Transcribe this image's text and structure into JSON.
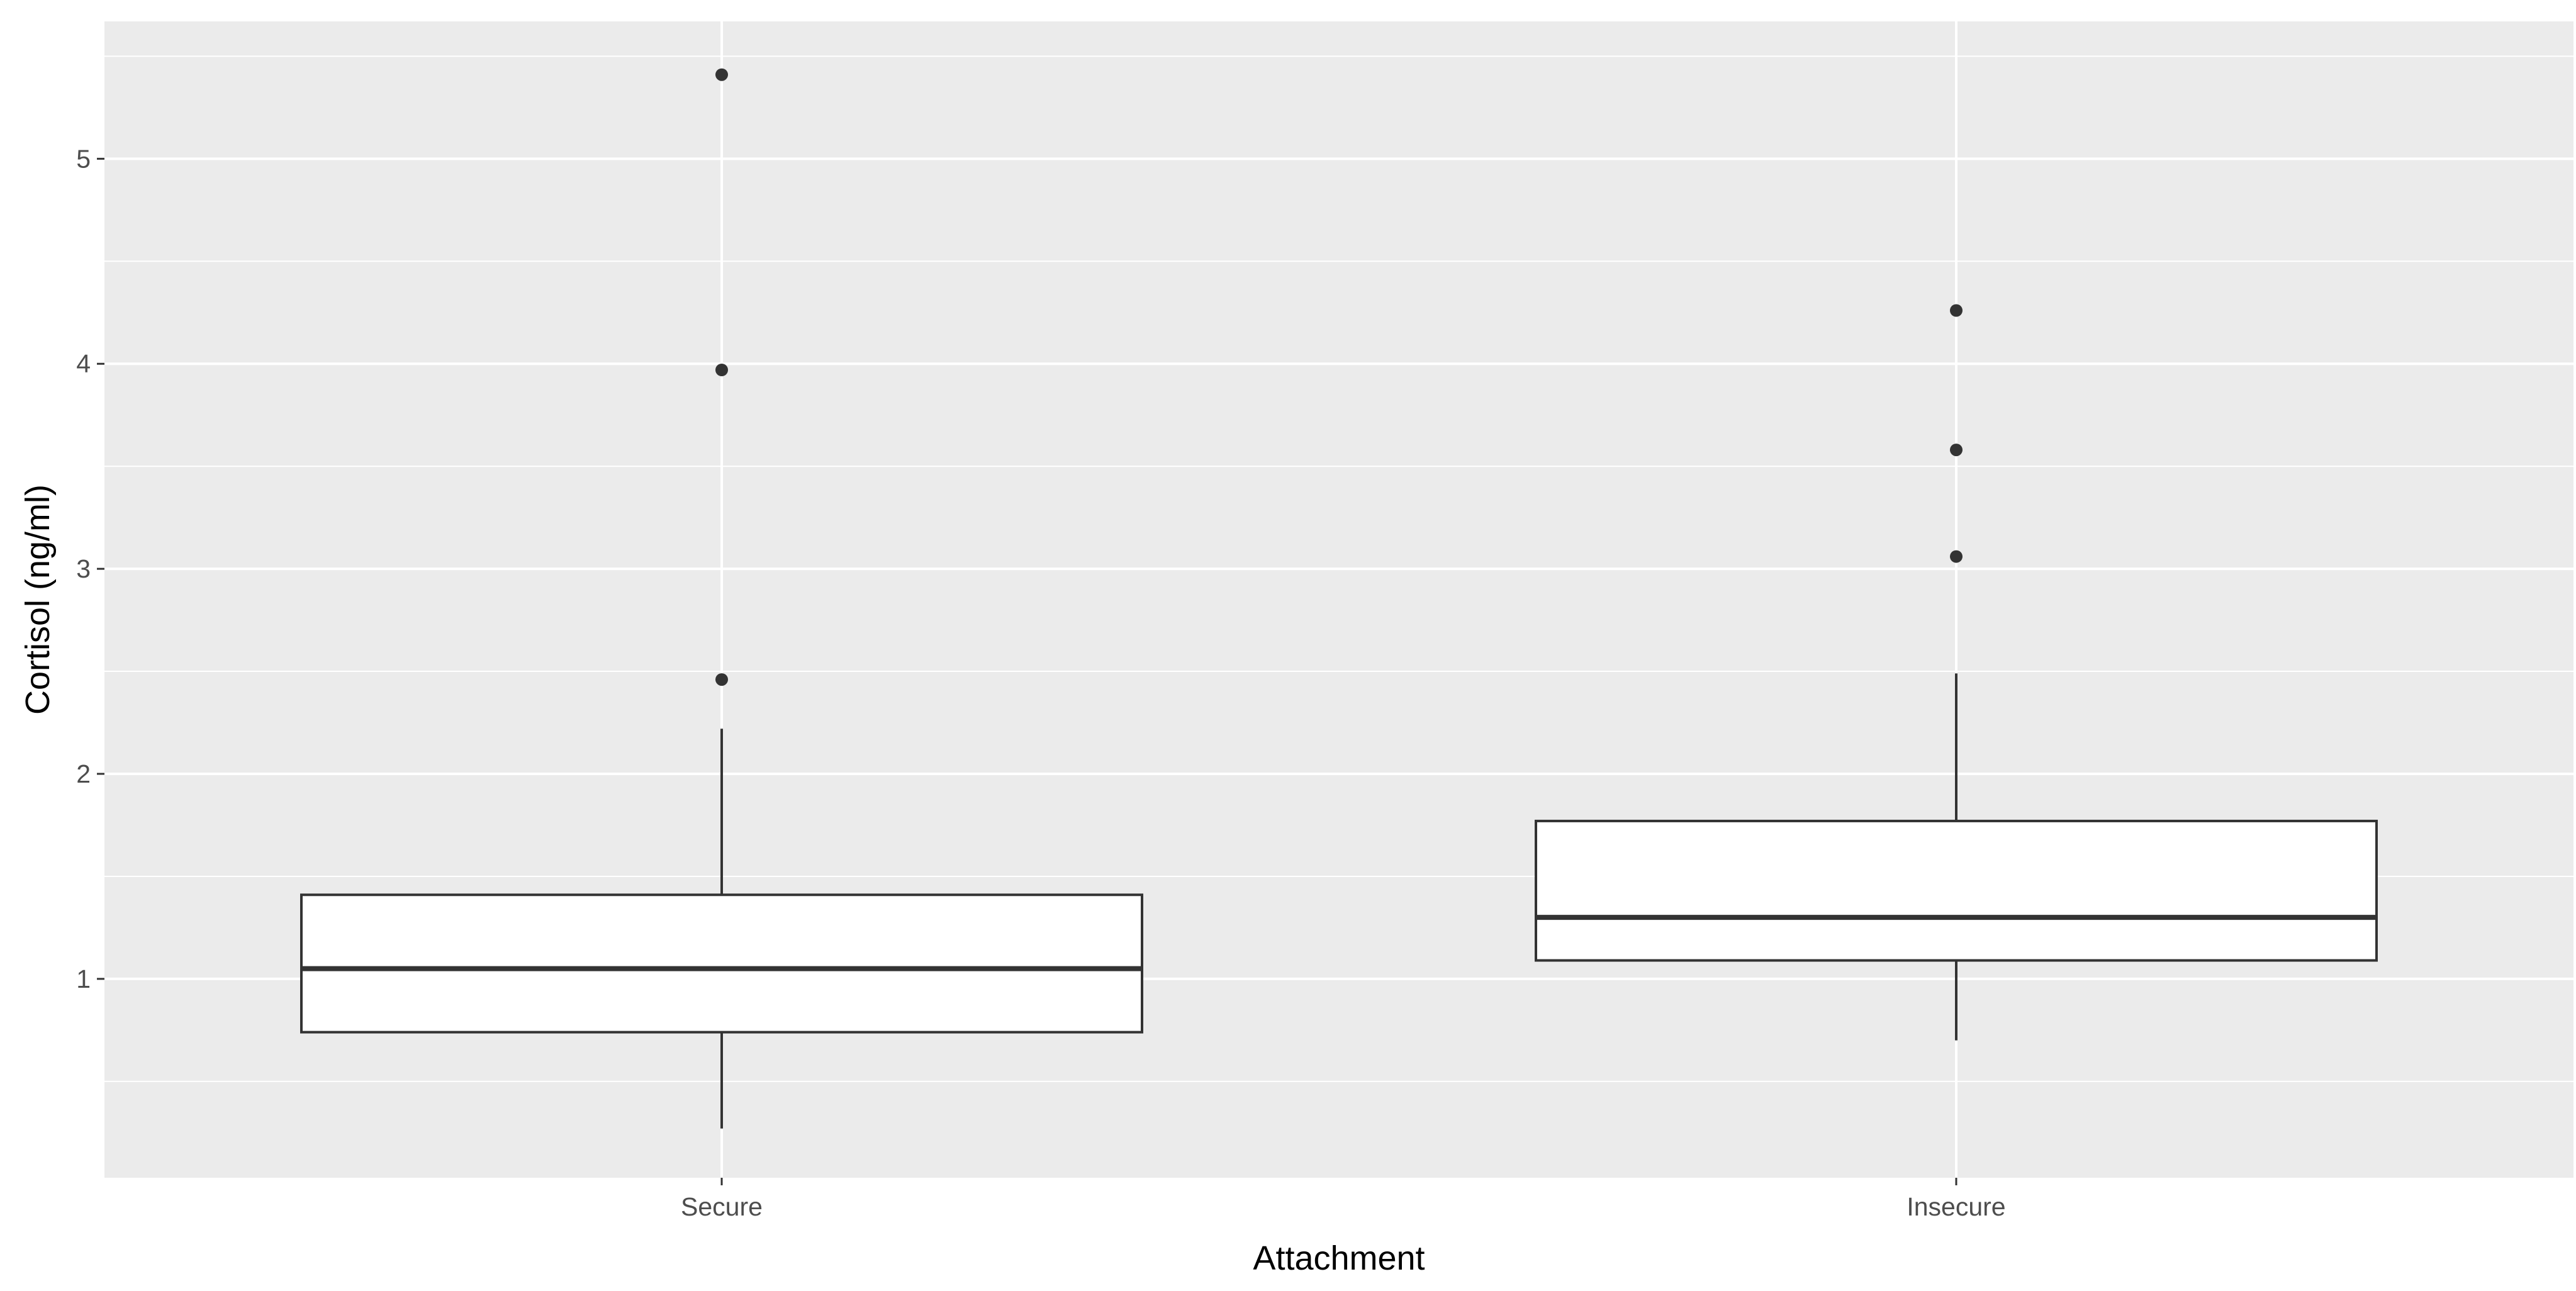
{
  "chart_data": {
    "type": "box",
    "title": "",
    "xlabel": "Attachment",
    "ylabel": "Cortisol (ng/ml)",
    "categories": [
      "Secure",
      "Insecure"
    ],
    "boxes": [
      {
        "category": "Secure",
        "whisker_low": 0.27,
        "q1": 0.74,
        "median": 1.05,
        "q3": 1.41,
        "whisker_high": 2.22,
        "outliers": [
          2.46,
          3.97,
          5.41
        ]
      },
      {
        "category": "Insecure",
        "whisker_low": 0.7,
        "q1": 1.09,
        "median": 1.3,
        "q3": 1.77,
        "whisker_high": 2.49,
        "outliers": [
          3.06,
          3.58,
          4.26
        ]
      }
    ],
    "yticks": [
      1,
      2,
      3,
      4,
      5
    ],
    "ylim": [
      0.03,
      5.67
    ],
    "grid": true,
    "legend": "none",
    "colors": {
      "panel_background": "#ebebeb",
      "gridline": "#ffffff",
      "box_fill": "#ffffff",
      "box_stroke": "#333333",
      "point": "#333333"
    }
  }
}
